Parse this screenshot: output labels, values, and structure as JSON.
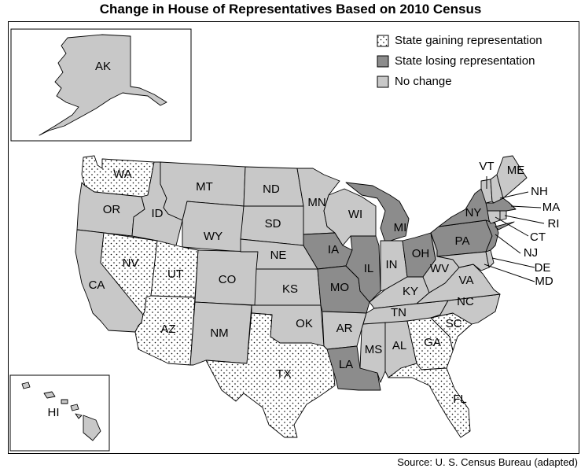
{
  "title": "Change in House of Representatives Based on 2010 Census",
  "source": "Source: U. S. Census Bureau (adapted)",
  "legend": {
    "gain": "State gaining representation",
    "lose": "State losing representation",
    "none": "No change"
  },
  "colors": {
    "gain_bg": "#ffffff",
    "gain_dot": "#000000",
    "lose": "#8c8c8c",
    "none": "#c8c8c8"
  },
  "states": {
    "AK": {
      "label": "AK",
      "change": "none"
    },
    "HI": {
      "label": "HI",
      "change": "none"
    },
    "WA": {
      "label": "WA",
      "change": "gain"
    },
    "OR": {
      "label": "OR",
      "change": "none"
    },
    "CA": {
      "label": "CA",
      "change": "none"
    },
    "NV": {
      "label": "NV",
      "change": "gain"
    },
    "ID": {
      "label": "ID",
      "change": "none"
    },
    "MT": {
      "label": "MT",
      "change": "none"
    },
    "WY": {
      "label": "WY",
      "change": "none"
    },
    "UT": {
      "label": "UT",
      "change": "gain"
    },
    "AZ": {
      "label": "AZ",
      "change": "gain"
    },
    "CO": {
      "label": "CO",
      "change": "none"
    },
    "NM": {
      "label": "NM",
      "change": "none"
    },
    "ND": {
      "label": "ND",
      "change": "none"
    },
    "SD": {
      "label": "SD",
      "change": "none"
    },
    "NE": {
      "label": "NE",
      "change": "none"
    },
    "KS": {
      "label": "KS",
      "change": "none"
    },
    "OK": {
      "label": "OK",
      "change": "none"
    },
    "TX": {
      "label": "TX",
      "change": "gain"
    },
    "MN": {
      "label": "MN",
      "change": "none"
    },
    "IA": {
      "label": "IA",
      "change": "lose"
    },
    "MO": {
      "label": "MO",
      "change": "lose"
    },
    "AR": {
      "label": "AR",
      "change": "none"
    },
    "LA": {
      "label": "LA",
      "change": "lose"
    },
    "WI": {
      "label": "WI",
      "change": "none"
    },
    "IL": {
      "label": "IL",
      "change": "lose"
    },
    "MI": {
      "label": "MI",
      "change": "lose"
    },
    "IN": {
      "label": "IN",
      "change": "none"
    },
    "OH": {
      "label": "OH",
      "change": "lose"
    },
    "KY": {
      "label": "KY",
      "change": "none"
    },
    "TN": {
      "label": "TN",
      "change": "none"
    },
    "MS": {
      "label": "MS",
      "change": "none"
    },
    "AL": {
      "label": "AL",
      "change": "none"
    },
    "GA": {
      "label": "GA",
      "change": "gain"
    },
    "FL": {
      "label": "FL",
      "change": "gain"
    },
    "SC": {
      "label": "SC",
      "change": "gain"
    },
    "NC": {
      "label": "NC",
      "change": "none"
    },
    "VA": {
      "label": "VA",
      "change": "none"
    },
    "WV": {
      "label": "WV",
      "change": "none"
    },
    "PA": {
      "label": "PA",
      "change": "lose"
    },
    "NY": {
      "label": "NY",
      "change": "lose"
    },
    "NJ": {
      "label": "NJ",
      "change": "lose"
    },
    "DE": {
      "label": "DE",
      "change": "none"
    },
    "MD": {
      "label": "MD",
      "change": "none"
    },
    "CT": {
      "label": "CT",
      "change": "none"
    },
    "RI": {
      "label": "RI",
      "change": "none"
    },
    "MA": {
      "label": "MA",
      "change": "lose"
    },
    "VT": {
      "label": "VT",
      "change": "none"
    },
    "NH": {
      "label": "NH",
      "change": "none"
    },
    "ME": {
      "label": "ME",
      "change": "none"
    }
  }
}
